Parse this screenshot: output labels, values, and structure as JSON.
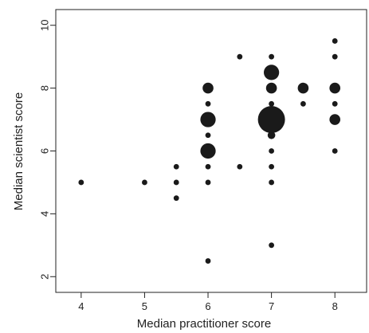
{
  "chart_data": {
    "type": "scatter",
    "title": "",
    "xlabel": "Median practitioner score",
    "ylabel": "Median scientist score",
    "xlim": [
      3.6,
      8.5
    ],
    "ylim": [
      1.5,
      10.5
    ],
    "xticks": [
      4,
      5,
      6,
      7,
      8
    ],
    "yticks": [
      2,
      4,
      6,
      8,
      10
    ],
    "grid": false,
    "legend": "none",
    "marker_color": "#1a1a1a",
    "size_note": "point size proportional to count",
    "points": [
      {
        "x": 4,
        "y": 5,
        "n": 1
      },
      {
        "x": 5,
        "y": 5,
        "n": 1
      },
      {
        "x": 5.5,
        "y": 4.5,
        "n": 1
      },
      {
        "x": 5.5,
        "y": 5,
        "n": 1
      },
      {
        "x": 5.5,
        "y": 5.5,
        "n": 1
      },
      {
        "x": 6,
        "y": 2.5,
        "n": 1
      },
      {
        "x": 6,
        "y": 5,
        "n": 1
      },
      {
        "x": 6,
        "y": 5.5,
        "n": 1
      },
      {
        "x": 6,
        "y": 6,
        "n": 8
      },
      {
        "x": 6,
        "y": 6.5,
        "n": 1
      },
      {
        "x": 6,
        "y": 7,
        "n": 8
      },
      {
        "x": 6,
        "y": 7.5,
        "n": 1
      },
      {
        "x": 6,
        "y": 8,
        "n": 4
      },
      {
        "x": 6.5,
        "y": 5.5,
        "n": 1
      },
      {
        "x": 6.5,
        "y": 9,
        "n": 1
      },
      {
        "x": 7,
        "y": 3,
        "n": 1
      },
      {
        "x": 7,
        "y": 5,
        "n": 1
      },
      {
        "x": 7,
        "y": 5.5,
        "n": 1
      },
      {
        "x": 7,
        "y": 6,
        "n": 1
      },
      {
        "x": 7,
        "y": 6.5,
        "n": 2
      },
      {
        "x": 7,
        "y": 7,
        "n": 25
      },
      {
        "x": 7,
        "y": 7.5,
        "n": 1
      },
      {
        "x": 7,
        "y": 8,
        "n": 4
      },
      {
        "x": 7,
        "y": 8.5,
        "n": 8
      },
      {
        "x": 7,
        "y": 9,
        "n": 1
      },
      {
        "x": 7.5,
        "y": 7.5,
        "n": 1
      },
      {
        "x": 7.5,
        "y": 8,
        "n": 4
      },
      {
        "x": 8,
        "y": 6,
        "n": 1
      },
      {
        "x": 8,
        "y": 7,
        "n": 4
      },
      {
        "x": 8,
        "y": 7.5,
        "n": 1
      },
      {
        "x": 8,
        "y": 8,
        "n": 4
      },
      {
        "x": 8,
        "y": 9,
        "n": 1
      },
      {
        "x": 8,
        "y": 9.5,
        "n": 1
      }
    ]
  }
}
